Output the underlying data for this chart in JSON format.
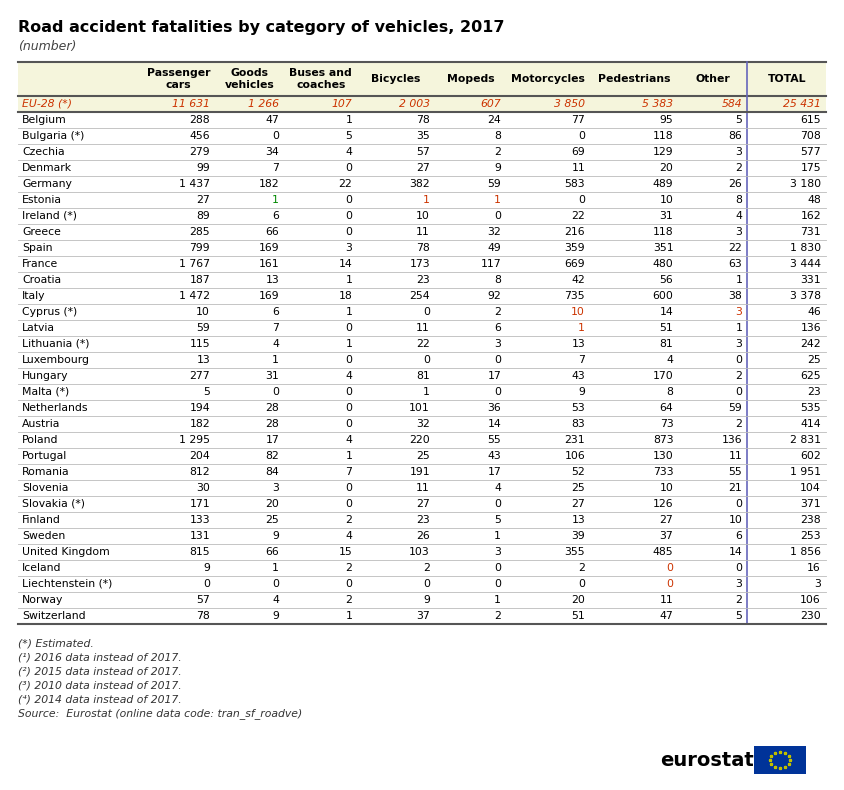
{
  "title": "Road accident fatalities by category of vehicles, 2017",
  "subtitle": "(number)",
  "columns": [
    "Passenger\ncars",
    "Goods\nvehicles",
    "Buses and\ncoaches",
    "Bicycles",
    "Mopeds",
    "Motorcycles",
    "Pedestrians",
    "Other",
    "TOTAL"
  ],
  "rows": [
    [
      "EU-28 (*)",
      "11 631",
      "1 266",
      "107",
      "2 003",
      "607",
      "3 850",
      "5 383",
      "584",
      "25 431"
    ],
    [
      "Belgium",
      "288",
      "47",
      "1",
      "78",
      "24",
      "77",
      "95",
      "5",
      "615"
    ],
    [
      "Bulgaria (*)",
      "456",
      "0",
      "5",
      "35",
      "8",
      "0",
      "118",
      "86",
      "708"
    ],
    [
      "Czechia",
      "279",
      "34",
      "4",
      "57",
      "2",
      "69",
      "129",
      "3",
      "577"
    ],
    [
      "Denmark",
      "99",
      "7",
      "0",
      "27",
      "9",
      "11",
      "20",
      "2",
      "175"
    ],
    [
      "Germany",
      "1 437",
      "182",
      "22",
      "382",
      "59",
      "583",
      "489",
      "26",
      "3 180"
    ],
    [
      "Estonia",
      "27",
      "1",
      "0",
      "1",
      "1",
      "0",
      "10",
      "8",
      "48"
    ],
    [
      "Ireland (*)",
      "89",
      "6",
      "0",
      "10",
      "0",
      "22",
      "31",
      "4",
      "162"
    ],
    [
      "Greece",
      "285",
      "66",
      "0",
      "11",
      "32",
      "216",
      "118",
      "3",
      "731"
    ],
    [
      "Spain",
      "799",
      "169",
      "3",
      "78",
      "49",
      "359",
      "351",
      "22",
      "1 830"
    ],
    [
      "France",
      "1 767",
      "161",
      "14",
      "173",
      "117",
      "669",
      "480",
      "63",
      "3 444"
    ],
    [
      "Croatia",
      "187",
      "13",
      "1",
      "23",
      "8",
      "42",
      "56",
      "1",
      "331"
    ],
    [
      "Italy",
      "1 472",
      "169",
      "18",
      "254",
      "92",
      "735",
      "600",
      "38",
      "3 378"
    ],
    [
      "Cyprus (*)",
      "10",
      "6",
      "1",
      "0",
      "2",
      "10",
      "14",
      "3",
      "46"
    ],
    [
      "Latvia",
      "59",
      "7",
      "0",
      "11",
      "6",
      "1",
      "51",
      "1",
      "136"
    ],
    [
      "Lithuania (*)",
      "115",
      "4",
      "1",
      "22",
      "3",
      "13",
      "81",
      "3",
      "242"
    ],
    [
      "Luxembourg",
      "13",
      "1",
      "0",
      "0",
      "0",
      "7",
      "4",
      "0",
      "25"
    ],
    [
      "Hungary",
      "277",
      "31",
      "4",
      "81",
      "17",
      "43",
      "170",
      "2",
      "625"
    ],
    [
      "Malta (*)",
      "5",
      "0",
      "0",
      "1",
      "0",
      "9",
      "8",
      "0",
      "23"
    ],
    [
      "Netherlands",
      "194",
      "28",
      "0",
      "101",
      "36",
      "53",
      "64",
      "59",
      "535"
    ],
    [
      "Austria",
      "182",
      "28",
      "0",
      "32",
      "14",
      "83",
      "73",
      "2",
      "414"
    ],
    [
      "Poland",
      "1 295",
      "17",
      "4",
      "220",
      "55",
      "231",
      "873",
      "136",
      "2 831"
    ],
    [
      "Portugal",
      "204",
      "82",
      "1",
      "25",
      "43",
      "106",
      "130",
      "11",
      "602"
    ],
    [
      "Romania",
      "812",
      "84",
      "7",
      "191",
      "17",
      "52",
      "733",
      "55",
      "1 951"
    ],
    [
      "Slovenia",
      "30",
      "3",
      "0",
      "11",
      "4",
      "25",
      "10",
      "21",
      "104"
    ],
    [
      "Slovakia (*)",
      "171",
      "20",
      "0",
      "27",
      "0",
      "27",
      "126",
      "0",
      "371"
    ],
    [
      "Finland",
      "133",
      "25",
      "2",
      "23",
      "5",
      "13",
      "27",
      "10",
      "238"
    ],
    [
      "Sweden",
      "131",
      "9",
      "4",
      "26",
      "1",
      "39",
      "37",
      "6",
      "253"
    ],
    [
      "United Kingdom",
      "815",
      "66",
      "15",
      "103",
      "3",
      "355",
      "485",
      "14",
      "1 856"
    ],
    [
      "Iceland",
      "9",
      "1",
      "2",
      "2",
      "0",
      "2",
      "0",
      "0",
      "16"
    ],
    [
      "Liechtenstein (*)",
      "0",
      "0",
      "0",
      "0",
      "0",
      "0",
      "0",
      "3",
      "3"
    ],
    [
      "Norway",
      "57",
      "4",
      "2",
      "9",
      "1",
      "20",
      "11",
      "2",
      "106"
    ],
    [
      "Switzerland",
      "78",
      "9",
      "1",
      "37",
      "2",
      "51",
      "47",
      "5",
      "230"
    ]
  ],
  "footnotes": [
    "(*) Estimated.",
    "(¹) 2016 data instead of 2017.",
    "(²) 2015 data instead of 2017.",
    "(³) 2010 data instead of 2017.",
    "(⁴) 2014 data instead of 2017.",
    "Source:  Eurostat (online data code: tran_sf_roadve)"
  ],
  "header_bg": "#f5f5dc",
  "eu28_bg": "#f5f5dc",
  "eu28_text_color": "#cc3300",
  "normal_text_color": "#000000",
  "header_text_color": "#000000",
  "title_color": "#000000",
  "bg_color": "#ffffff",
  "special_cells": {
    "6,2": "#008800",
    "6,4": "#cc3300",
    "6,5": "#cc3300",
    "13,6": "#cc3300",
    "13,8": "#cc3300",
    "14,6": "#cc3300",
    "29,7": "#cc3300",
    "30,7": "#cc3300"
  }
}
